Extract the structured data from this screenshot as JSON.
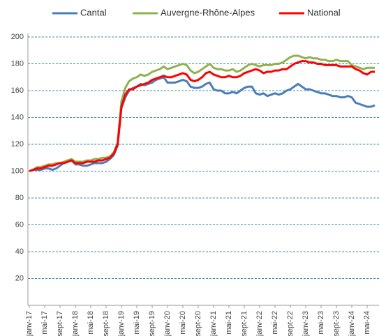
{
  "chart_data": {
    "type": "line",
    "categories": [
      "janv-17",
      null,
      null,
      null,
      "mai-17",
      null,
      null,
      null,
      "sept-17",
      null,
      null,
      null,
      "janv-18",
      null,
      null,
      null,
      "mai-18",
      null,
      null,
      null,
      "sept-18",
      null,
      null,
      null,
      "janv-19",
      null,
      null,
      null,
      "mai-19",
      null,
      null,
      null,
      "sept-19",
      null,
      null,
      null,
      "janv-20",
      null,
      null,
      null,
      "mai-20",
      null,
      null,
      null,
      "sept-20",
      null,
      null,
      null,
      "janv-21",
      null,
      null,
      null,
      "mai-21",
      null,
      null,
      null,
      "sept-21",
      null,
      null,
      null,
      "janv-22",
      null,
      null,
      null,
      "mai-22",
      null,
      null,
      null,
      "sept-22",
      null,
      null,
      null,
      "janv-23",
      null,
      null,
      null,
      "mai-23",
      null,
      null,
      null,
      "sept-23",
      null,
      null,
      null,
      "janv-24",
      null,
      null,
      null,
      "mai-24",
      null,
      null
    ],
    "series": [
      {
        "name": "Cantal",
        "color": "#4a7ebb",
        "values": [
          100,
          101,
          101,
          101,
          102,
          102,
          101,
          102,
          104,
          106,
          107,
          108,
          105,
          105,
          104,
          104,
          105,
          106,
          106,
          106,
          107,
          109,
          112,
          119,
          147,
          155,
          160,
          162,
          163,
          165,
          164,
          165,
          166,
          168,
          169,
          170,
          166,
          166,
          166,
          167,
          168,
          167,
          163,
          162,
          162,
          163,
          165,
          166,
          161,
          160,
          160,
          158,
          158,
          159,
          158,
          160,
          162,
          163,
          163,
          158,
          157,
          158,
          156,
          157,
          158,
          157,
          158,
          160,
          161,
          163,
          165,
          163,
          161,
          161,
          160,
          159,
          158,
          158,
          157,
          156,
          156,
          155,
          155,
          156,
          155,
          151,
          150,
          149,
          148,
          148,
          149
        ]
      },
      {
        "name": "Auvergne-Rhône-Alpes",
        "color": "#8fb24f",
        "values": [
          100,
          101,
          103,
          103,
          104,
          105,
          105,
          106,
          106,
          107,
          108,
          109,
          107,
          107,
          107,
          108,
          108,
          109,
          109,
          110,
          110,
          111,
          114,
          121,
          152,
          162,
          167,
          169,
          170,
          172,
          171,
          172,
          174,
          175,
          176,
          178,
          176,
          177,
          178,
          179,
          180,
          179,
          175,
          173,
          174,
          176,
          178,
          180,
          177,
          176,
          176,
          175,
          175,
          176,
          174,
          175,
          177,
          179,
          180,
          179,
          178,
          179,
          179,
          179,
          180,
          180,
          181,
          183,
          185,
          186,
          186,
          185,
          184,
          185,
          184,
          184,
          183,
          183,
          182,
          182,
          183,
          182,
          182,
          182,
          179,
          178,
          177,
          176,
          177,
          177,
          177
        ]
      },
      {
        "name": "National",
        "color": "#ff0000",
        "values": [
          100,
          101,
          102,
          102,
          103,
          104,
          104,
          105,
          106,
          106,
          107,
          108,
          106,
          106,
          106,
          107,
          107,
          107,
          108,
          108,
          109,
          110,
          113,
          120,
          148,
          157,
          161,
          161,
          163,
          164,
          165,
          166,
          168,
          169,
          170,
          171,
          170,
          170,
          171,
          172,
          173,
          172,
          168,
          167,
          168,
          170,
          173,
          174,
          172,
          171,
          170,
          170,
          171,
          170,
          170,
          171,
          173,
          174,
          175,
          176,
          175,
          173,
          174,
          174,
          175,
          175,
          176,
          176,
          178,
          180,
          181,
          182,
          182,
          181,
          181,
          180,
          180,
          179,
          179,
          179,
          179,
          178,
          178,
          178,
          178,
          176,
          175,
          173,
          172,
          174,
          174
        ]
      }
    ],
    "ylim": [
      0,
      200
    ],
    "yticks": [
      20,
      40,
      60,
      80,
      100,
      120,
      140,
      160,
      180,
      200
    ],
    "grid": true
  }
}
